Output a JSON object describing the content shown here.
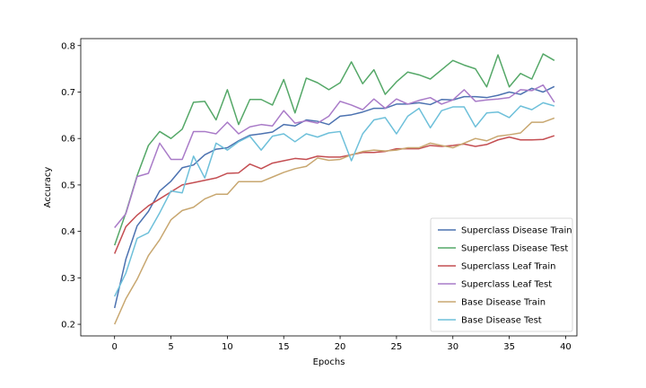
{
  "chart_data": {
    "type": "line",
    "title": "",
    "xlabel": "Epochs",
    "ylabel": "Accuracy",
    "xlim": [
      -3,
      41
    ],
    "ylim": [
      0.175,
      0.815
    ],
    "xticks": [
      0,
      5,
      10,
      15,
      20,
      25,
      30,
      35,
      40
    ],
    "yticks": [
      0.2,
      0.3,
      0.4,
      0.5,
      0.6,
      0.7,
      0.8
    ],
    "xtick_labels": [
      "0",
      "5",
      "10",
      "15",
      "20",
      "25",
      "30",
      "35",
      "40"
    ],
    "ytick_labels": [
      "0.2",
      "0.3",
      "0.4",
      "0.5",
      "0.6",
      "0.7",
      "0.8"
    ],
    "grid": false,
    "legend_position": "lower-right",
    "series": [
      {
        "name": "Superclass Disease Train",
        "color": "#4c72b0",
        "values": [
          0.235,
          0.34,
          0.412,
          0.443,
          0.487,
          0.508,
          0.537,
          0.543,
          0.565,
          0.577,
          0.58,
          0.595,
          0.607,
          0.61,
          0.614,
          0.63,
          0.627,
          0.64,
          0.637,
          0.63,
          0.648,
          0.651,
          0.657,
          0.665,
          0.665,
          0.674,
          0.674,
          0.677,
          0.673,
          0.684,
          0.683,
          0.69,
          0.69,
          0.688,
          0.693,
          0.7,
          0.695,
          0.708,
          0.7,
          0.712
        ]
      },
      {
        "name": "Superclass Disease Test",
        "color": "#55a868",
        "values": [
          0.37,
          0.44,
          0.52,
          0.585,
          0.615,
          0.6,
          0.62,
          0.678,
          0.68,
          0.64,
          0.705,
          0.63,
          0.684,
          0.684,
          0.672,
          0.727,
          0.655,
          0.73,
          0.72,
          0.705,
          0.72,
          0.765,
          0.718,
          0.748,
          0.695,
          0.722,
          0.743,
          0.737,
          0.728,
          0.748,
          0.768,
          0.758,
          0.75,
          0.711,
          0.78,
          0.711,
          0.74,
          0.728,
          0.782,
          0.768
        ]
      },
      {
        "name": "Superclass Leaf Train",
        "color": "#c44e52",
        "values": [
          0.352,
          0.41,
          0.435,
          0.455,
          0.47,
          0.485,
          0.5,
          0.505,
          0.51,
          0.515,
          0.525,
          0.526,
          0.545,
          0.535,
          0.547,
          0.552,
          0.557,
          0.555,
          0.562,
          0.56,
          0.56,
          0.565,
          0.57,
          0.57,
          0.572,
          0.578,
          0.578,
          0.578,
          0.585,
          0.583,
          0.585,
          0.588,
          0.583,
          0.587,
          0.597,
          0.603,
          0.597,
          0.597,
          0.598,
          0.606
        ]
      },
      {
        "name": "Superclass Leaf Test",
        "color": "#a97bc8",
        "values": [
          0.408,
          0.438,
          0.518,
          0.525,
          0.59,
          0.555,
          0.555,
          0.615,
          0.615,
          0.61,
          0.635,
          0.61,
          0.625,
          0.63,
          0.627,
          0.66,
          0.633,
          0.638,
          0.633,
          0.648,
          0.68,
          0.672,
          0.662,
          0.685,
          0.665,
          0.685,
          0.674,
          0.682,
          0.688,
          0.674,
          0.683,
          0.705,
          0.68,
          0.683,
          0.685,
          0.688,
          0.705,
          0.703,
          0.715,
          0.678
        ]
      },
      {
        "name": "Base Disease Train",
        "color": "#c8a770",
        "values": [
          0.2,
          0.255,
          0.297,
          0.348,
          0.382,
          0.425,
          0.445,
          0.452,
          0.47,
          0.48,
          0.48,
          0.507,
          0.507,
          0.507,
          0.517,
          0.527,
          0.535,
          0.54,
          0.558,
          0.553,
          0.555,
          0.565,
          0.572,
          0.575,
          0.573,
          0.575,
          0.58,
          0.58,
          0.59,
          0.585,
          0.58,
          0.59,
          0.6,
          0.595,
          0.605,
          0.608,
          0.612,
          0.635,
          0.635,
          0.644
        ]
      },
      {
        "name": "Base Disease Test",
        "color": "#6ec0da",
        "values": [
          0.26,
          0.31,
          0.385,
          0.397,
          0.44,
          0.487,
          0.483,
          0.562,
          0.515,
          0.59,
          0.575,
          0.593,
          0.605,
          0.575,
          0.605,
          0.61,
          0.593,
          0.61,
          0.603,
          0.612,
          0.615,
          0.552,
          0.61,
          0.64,
          0.645,
          0.61,
          0.648,
          0.665,
          0.623,
          0.66,
          0.668,
          0.668,
          0.625,
          0.655,
          0.657,
          0.645,
          0.67,
          0.662,
          0.677,
          0.67
        ]
      }
    ]
  }
}
